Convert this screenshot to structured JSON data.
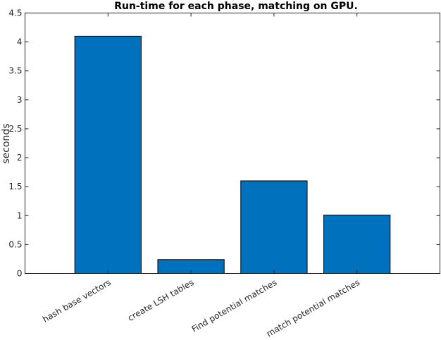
{
  "chart_data": {
    "type": "bar",
    "title": "Run-time for each phase, matching on GPU.",
    "xlabel": "",
    "ylabel": "seconds",
    "categories": [
      "hash base vectors",
      "create LSH tables",
      "Find potential matches",
      "match potential matches"
    ],
    "values": [
      4.1,
      0.24,
      1.6,
      1.01
    ],
    "ylim": [
      0,
      4.5
    ],
    "yticks": [
      "0",
      "0.5",
      "1",
      "1.5",
      "2",
      "2.5",
      "3",
      "3.5",
      "4",
      "4.5"
    ],
    "xlim": [
      0,
      5
    ],
    "grid": false,
    "legend": "none",
    "bar_color": "#0072BD",
    "bar_edge_color": "#000000"
  }
}
